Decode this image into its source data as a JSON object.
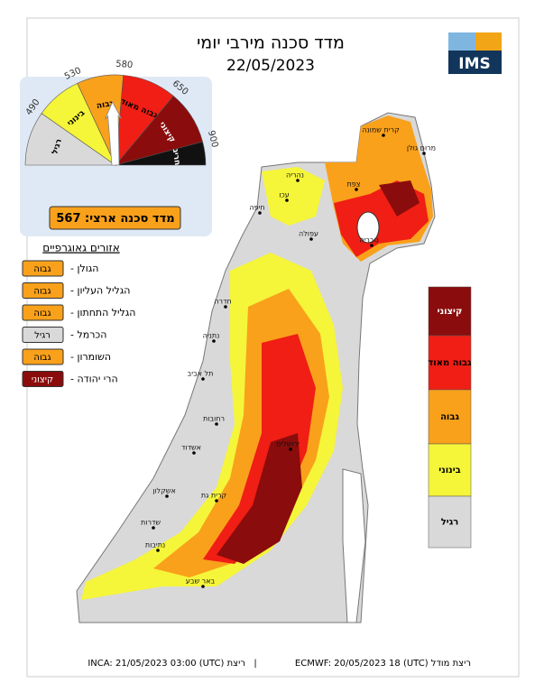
{
  "header": {
    "title": "מדד סכנה מירבי יומי",
    "date": "22/05/2023",
    "logo": "IMS"
  },
  "gauge": {
    "ticks": [
      490,
      530,
      580,
      650,
      900
    ],
    "levels": [
      "רגיל",
      "בינוני",
      "גבוה",
      "גבוה מאוד",
      "קיצוני",
      "חריג"
    ],
    "colors": [
      "#d9d9d9",
      "#f5f53a",
      "#f9a11b",
      "#f01e14",
      "#8b0c0c",
      "#111111"
    ],
    "index_label": "מדד סכנה ארצי:",
    "index_value": 567
  },
  "regions": {
    "title": "אזורים גאוגרפיים",
    "items": [
      {
        "name": "הגולן -",
        "level": "גבוה"
      },
      {
        "name": "הגליל העליון -",
        "level": "גבוה"
      },
      {
        "name": "הגליל התחתון -",
        "level": "גבוה"
      },
      {
        "name": "הכרמל -",
        "level": "רגיל"
      },
      {
        "name": "השומרון -",
        "level": "גבוה"
      },
      {
        "name": "הרי יהודה -",
        "level": "קיצוני"
      }
    ]
  },
  "legend": [
    "קיצוני",
    "גבוה מאוד",
    "גבוה",
    "בינוני",
    "רגיל"
  ],
  "cities": [
    "קרית שמונה",
    "מרום גולן",
    "צפת",
    "נהריה",
    "עכו",
    "טבריה",
    "חיפה",
    "עפולה",
    "חדרה",
    "נתניה",
    "תל אביב",
    "ירושלים",
    "רחובות",
    "אשדוד",
    "אשקלון",
    "קרית גת",
    "שדרות",
    "נתיבות",
    "באר שבע"
  ],
  "footer": {
    "model": "ריצת מודל ECMWF: 20/05/2023 18 (UTC)",
    "separator": "|",
    "inca": "ריצת INCA: 21/05/2023 03:00 (UTC)"
  }
}
